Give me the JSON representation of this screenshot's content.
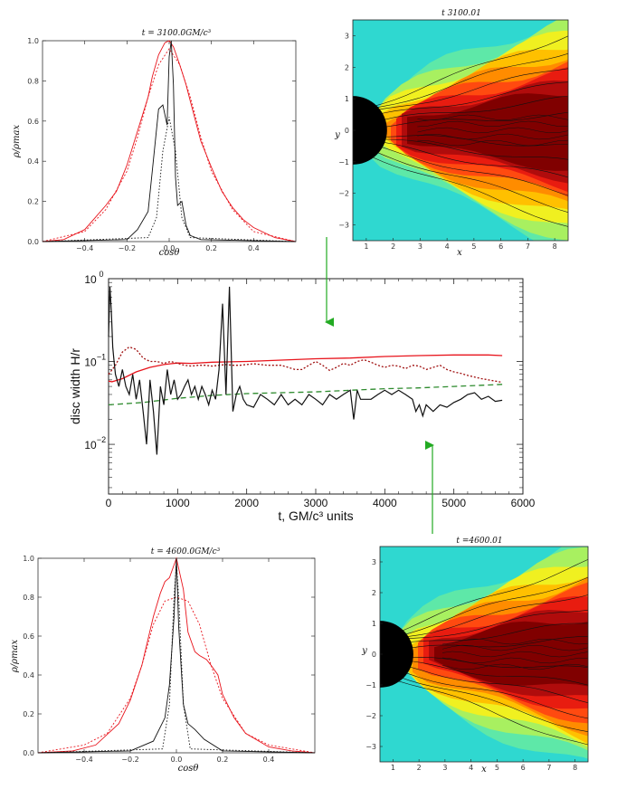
{
  "colors": {
    "red": "#e8141c",
    "dark_red": "#a01010",
    "black": "#111111",
    "green_dash": "#2e8b2e",
    "arrow_green": "#22aa22",
    "bh": "#000000"
  },
  "chart_data": [
    {
      "id": "profile_top",
      "type": "line",
      "title": "t = 3100.0GM/c³",
      "xlabel": "cosθ",
      "ylabel": "ρ/ρmax",
      "xlim": [
        -0.6,
        0.6
      ],
      "ylim": [
        0.0,
        1.0
      ],
      "xticks": [
        "−0.4",
        "−0.2",
        "0.0",
        "0.2",
        "0.4"
      ],
      "yticks": [
        "0.0",
        "0.2",
        "0.4",
        "0.6",
        "0.8",
        "1.0"
      ],
      "series": [
        {
          "name": "red_solid",
          "color": "#e8141c",
          "dash": "none",
          "x": [
            -0.6,
            -0.5,
            -0.4,
            -0.35,
            -0.3,
            -0.25,
            -0.2,
            -0.15,
            -0.1,
            -0.08,
            -0.05,
            -0.02,
            0.0,
            0.02,
            0.05,
            0.08,
            0.1,
            0.15,
            0.2,
            0.25,
            0.3,
            0.35,
            0.4,
            0.5,
            0.6
          ],
          "y": [
            0.0,
            0.01,
            0.06,
            0.12,
            0.18,
            0.25,
            0.38,
            0.55,
            0.72,
            0.82,
            0.93,
            0.99,
            1.0,
            0.97,
            0.88,
            0.78,
            0.7,
            0.5,
            0.37,
            0.25,
            0.17,
            0.11,
            0.07,
            0.02,
            0.0
          ]
        },
        {
          "name": "red_dotted",
          "color": "#e8141c",
          "dash": "2,2",
          "x": [
            -0.6,
            -0.4,
            -0.3,
            -0.2,
            -0.15,
            -0.1,
            -0.05,
            0.0,
            0.05,
            0.1,
            0.15,
            0.2,
            0.3,
            0.4,
            0.6
          ],
          "y": [
            0.0,
            0.05,
            0.16,
            0.35,
            0.52,
            0.72,
            0.88,
            0.96,
            0.88,
            0.72,
            0.52,
            0.35,
            0.16,
            0.05,
            0.0
          ]
        },
        {
          "name": "black_solid",
          "color": "#111111",
          "dash": "none",
          "x": [
            -0.6,
            -0.2,
            -0.15,
            -0.1,
            -0.08,
            -0.05,
            -0.03,
            -0.01,
            0.0,
            0.01,
            0.02,
            0.03,
            0.04,
            0.06,
            0.08,
            0.1,
            0.15,
            0.6
          ],
          "y": [
            0.0,
            0.01,
            0.06,
            0.15,
            0.35,
            0.66,
            0.68,
            0.58,
            0.92,
            1.0,
            0.78,
            0.32,
            0.18,
            0.2,
            0.08,
            0.03,
            0.01,
            0.0
          ]
        },
        {
          "name": "black_dotted",
          "color": "#111111",
          "dash": "1.5,2",
          "x": [
            -0.6,
            -0.1,
            -0.06,
            -0.03,
            0.0,
            0.03,
            0.06,
            0.1,
            0.6
          ],
          "y": [
            0.0,
            0.02,
            0.12,
            0.45,
            0.62,
            0.45,
            0.12,
            0.02,
            0.0
          ]
        }
      ]
    },
    {
      "id": "disc_width",
      "type": "line",
      "xlabel": "t, GM/c³ units",
      "ylabel": "disc width H/r",
      "xlim": [
        0,
        6000
      ],
      "ylim_log10": [
        -2.6,
        0.0
      ],
      "xticks": [
        "0",
        "1000",
        "2000",
        "3000",
        "4000",
        "5000",
        "6000"
      ],
      "ytick_bases": [
        "10",
        "10",
        "10"
      ],
      "ytick_exps": [
        "0",
        "−1",
        "−2"
      ],
      "series": [
        {
          "name": "red_solid",
          "color": "#e8141c",
          "dash": "none",
          "x": [
            0,
            50,
            200,
            400,
            600,
            800,
            900,
            1000,
            1200,
            1500,
            2000,
            2500,
            3000,
            3500,
            4000,
            4500,
            5000,
            5500,
            5700
          ],
          "y": [
            0.058,
            0.057,
            0.062,
            0.075,
            0.085,
            0.092,
            0.094,
            0.096,
            0.095,
            0.098,
            0.1,
            0.104,
            0.108,
            0.11,
            0.115,
            0.118,
            0.12,
            0.12,
            0.118
          ]
        },
        {
          "name": "red_dotted",
          "color": "#a01010",
          "dash": "2,2",
          "x": [
            0,
            100,
            200,
            300,
            400,
            500,
            600,
            700,
            800,
            900,
            1000,
            1100,
            1200,
            1300,
            1400,
            1500,
            1600,
            1700,
            1800,
            1900,
            2000,
            2100,
            2200,
            2300,
            2400,
            2500,
            2600,
            2700,
            2800,
            2900,
            3000,
            3100,
            3200,
            3300,
            3400,
            3500,
            3600,
            3700,
            3800,
            3900,
            4000,
            4100,
            4200,
            4300,
            4400,
            4500,
            4600,
            4700,
            4800,
            4900,
            5000,
            5100,
            5200,
            5300,
            5400,
            5500,
            5600,
            5700
          ],
          "y": [
            0.07,
            0.09,
            0.13,
            0.15,
            0.14,
            0.11,
            0.1,
            0.1,
            0.095,
            0.1,
            0.095,
            0.09,
            0.088,
            0.09,
            0.09,
            0.088,
            0.09,
            0.092,
            0.09,
            0.09,
            0.092,
            0.094,
            0.092,
            0.09,
            0.09,
            0.09,
            0.085,
            0.08,
            0.08,
            0.09,
            0.1,
            0.09,
            0.078,
            0.085,
            0.095,
            0.09,
            0.1,
            0.105,
            0.098,
            0.09,
            0.085,
            0.09,
            0.088,
            0.082,
            0.09,
            0.088,
            0.08,
            0.085,
            0.09,
            0.08,
            0.075,
            0.072,
            0.068,
            0.065,
            0.062,
            0.06,
            0.058,
            0.056
          ]
        },
        {
          "name": "green_dashed",
          "color": "#2e8b2e",
          "dash": "6,4",
          "x": [
            0,
            500,
            1000,
            1500,
            2000,
            2500,
            3000,
            3500,
            4000,
            4500,
            5000,
            5500,
            5700
          ],
          "y": [
            0.03,
            0.032,
            0.036,
            0.039,
            0.041,
            0.042,
            0.043,
            0.045,
            0.047,
            0.048,
            0.05,
            0.052,
            0.053
          ]
        },
        {
          "name": "black_solid",
          "color": "#111111",
          "dash": "none",
          "x": [
            0,
            20,
            40,
            60,
            80,
            100,
            150,
            200,
            250,
            300,
            350,
            400,
            450,
            500,
            550,
            600,
            650,
            700,
            750,
            800,
            850,
            900,
            950,
            1000,
            1050,
            1100,
            1150,
            1200,
            1250,
            1300,
            1350,
            1400,
            1450,
            1500,
            1550,
            1600,
            1650,
            1700,
            1750,
            1800,
            1850,
            1900,
            1950,
            2000,
            2100,
            2200,
            2300,
            2400,
            2500,
            2600,
            2700,
            2800,
            2900,
            3000,
            3100,
            3200,
            3300,
            3400,
            3500,
            3550,
            3600,
            3650,
            3700,
            3800,
            3900,
            4000,
            4100,
            4200,
            4300,
            4400,
            4450,
            4500,
            4550,
            4600,
            4700,
            4800,
            4900,
            5000,
            5100,
            5200,
            5300,
            5400,
            5500,
            5600,
            5700
          ],
          "y": [
            0.2,
            0.8,
            0.4,
            0.15,
            0.1,
            0.07,
            0.05,
            0.08,
            0.05,
            0.04,
            0.07,
            0.035,
            0.06,
            0.025,
            0.01,
            0.06,
            0.025,
            0.0075,
            0.05,
            0.03,
            0.08,
            0.04,
            0.06,
            0.035,
            0.04,
            0.05,
            0.06,
            0.04,
            0.05,
            0.035,
            0.05,
            0.04,
            0.03,
            0.045,
            0.035,
            0.08,
            0.5,
            0.04,
            0.8,
            0.025,
            0.04,
            0.05,
            0.035,
            0.03,
            0.028,
            0.04,
            0.035,
            0.03,
            0.04,
            0.03,
            0.035,
            0.03,
            0.04,
            0.035,
            0.03,
            0.04,
            0.035,
            0.04,
            0.045,
            0.02,
            0.045,
            0.035,
            0.035,
            0.035,
            0.04,
            0.045,
            0.04,
            0.045,
            0.04,
            0.035,
            0.025,
            0.03,
            0.022,
            0.03,
            0.025,
            0.03,
            0.028,
            0.032,
            0.035,
            0.04,
            0.042,
            0.035,
            0.038,
            0.033,
            0.034
          ]
        }
      ]
    },
    {
      "id": "profile_bottom",
      "type": "line",
      "title": "t = 4600.0GM/c³",
      "xlabel": "cosθ",
      "ylabel": "ρ/ρmax",
      "xlim": [
        -0.6,
        0.6
      ],
      "ylim": [
        0.0,
        1.0
      ],
      "xticks": [
        "−0.4",
        "−0.2",
        "0.0",
        "0.2",
        "0.4"
      ],
      "yticks": [
        "0.0",
        "0.2",
        "0.4",
        "0.6",
        "0.8",
        "1.0"
      ],
      "series": [
        {
          "name": "red_solid",
          "color": "#e8141c",
          "dash": "none",
          "x": [
            -0.6,
            -0.45,
            -0.35,
            -0.25,
            -0.2,
            -0.15,
            -0.1,
            -0.07,
            -0.05,
            -0.03,
            0.0,
            0.03,
            0.05,
            0.08,
            0.1,
            0.13,
            0.15,
            0.18,
            0.2,
            0.25,
            0.3,
            0.4,
            0.5,
            0.6
          ],
          "y": [
            0.0,
            0.01,
            0.04,
            0.15,
            0.27,
            0.45,
            0.7,
            0.82,
            0.88,
            0.9,
            1.0,
            0.84,
            0.62,
            0.52,
            0.5,
            0.48,
            0.45,
            0.4,
            0.3,
            0.18,
            0.1,
            0.03,
            0.01,
            0.0
          ]
        },
        {
          "name": "red_dotted",
          "color": "#e8141c",
          "dash": "2,2",
          "x": [
            -0.6,
            -0.4,
            -0.3,
            -0.2,
            -0.15,
            -0.1,
            -0.05,
            0.0,
            0.05,
            0.1,
            0.15,
            0.2,
            0.3,
            0.4,
            0.6
          ],
          "y": [
            0.0,
            0.04,
            0.1,
            0.28,
            0.45,
            0.66,
            0.78,
            0.8,
            0.78,
            0.66,
            0.45,
            0.28,
            0.1,
            0.04,
            0.0
          ]
        },
        {
          "name": "black_solid",
          "color": "#111111",
          "dash": "none",
          "x": [
            -0.6,
            -0.2,
            -0.1,
            -0.05,
            -0.03,
            -0.01,
            0.0,
            0.01,
            0.03,
            0.05,
            0.08,
            0.12,
            0.2,
            0.6
          ],
          "y": [
            0.0,
            0.01,
            0.06,
            0.18,
            0.35,
            0.7,
            1.0,
            0.65,
            0.25,
            0.15,
            0.12,
            0.07,
            0.01,
            0.0
          ]
        },
        {
          "name": "black_dotted",
          "color": "#111111",
          "dash": "1.5,2",
          "x": [
            -0.6,
            -0.06,
            -0.03,
            -0.01,
            0.0,
            0.01,
            0.03,
            0.06,
            0.6
          ],
          "y": [
            0.0,
            0.02,
            0.25,
            0.8,
            0.98,
            0.8,
            0.25,
            0.02,
            0.0
          ]
        }
      ]
    }
  ],
  "maps": [
    {
      "id": "map_top",
      "title": "t   3100.01",
      "xticks": [
        "1",
        "2",
        "3",
        "4",
        "5",
        "6",
        "7",
        "8"
      ],
      "yticks": [
        "3",
        "2",
        "1",
        "0",
        "−1",
        "−2",
        "−3"
      ],
      "xlabel": "x",
      "ylabel": "y"
    },
    {
      "id": "map_bottom",
      "title": "t =4600.01",
      "xticks": [
        "1",
        "2",
        "3",
        "4",
        "5",
        "6",
        "7",
        "8"
      ],
      "yticks": [
        "3",
        "2",
        "1",
        "0",
        "−1",
        "−2",
        "−3"
      ],
      "xlabel": "x",
      "ylabel": "y"
    }
  ],
  "contour_colors": [
    "#2fd8d0",
    "#5ee8a8",
    "#a8f060",
    "#f0f020",
    "#ffc000",
    "#ff8c00",
    "#ff4a10",
    "#e81c10",
    "#b00c0c",
    "#800000"
  ]
}
